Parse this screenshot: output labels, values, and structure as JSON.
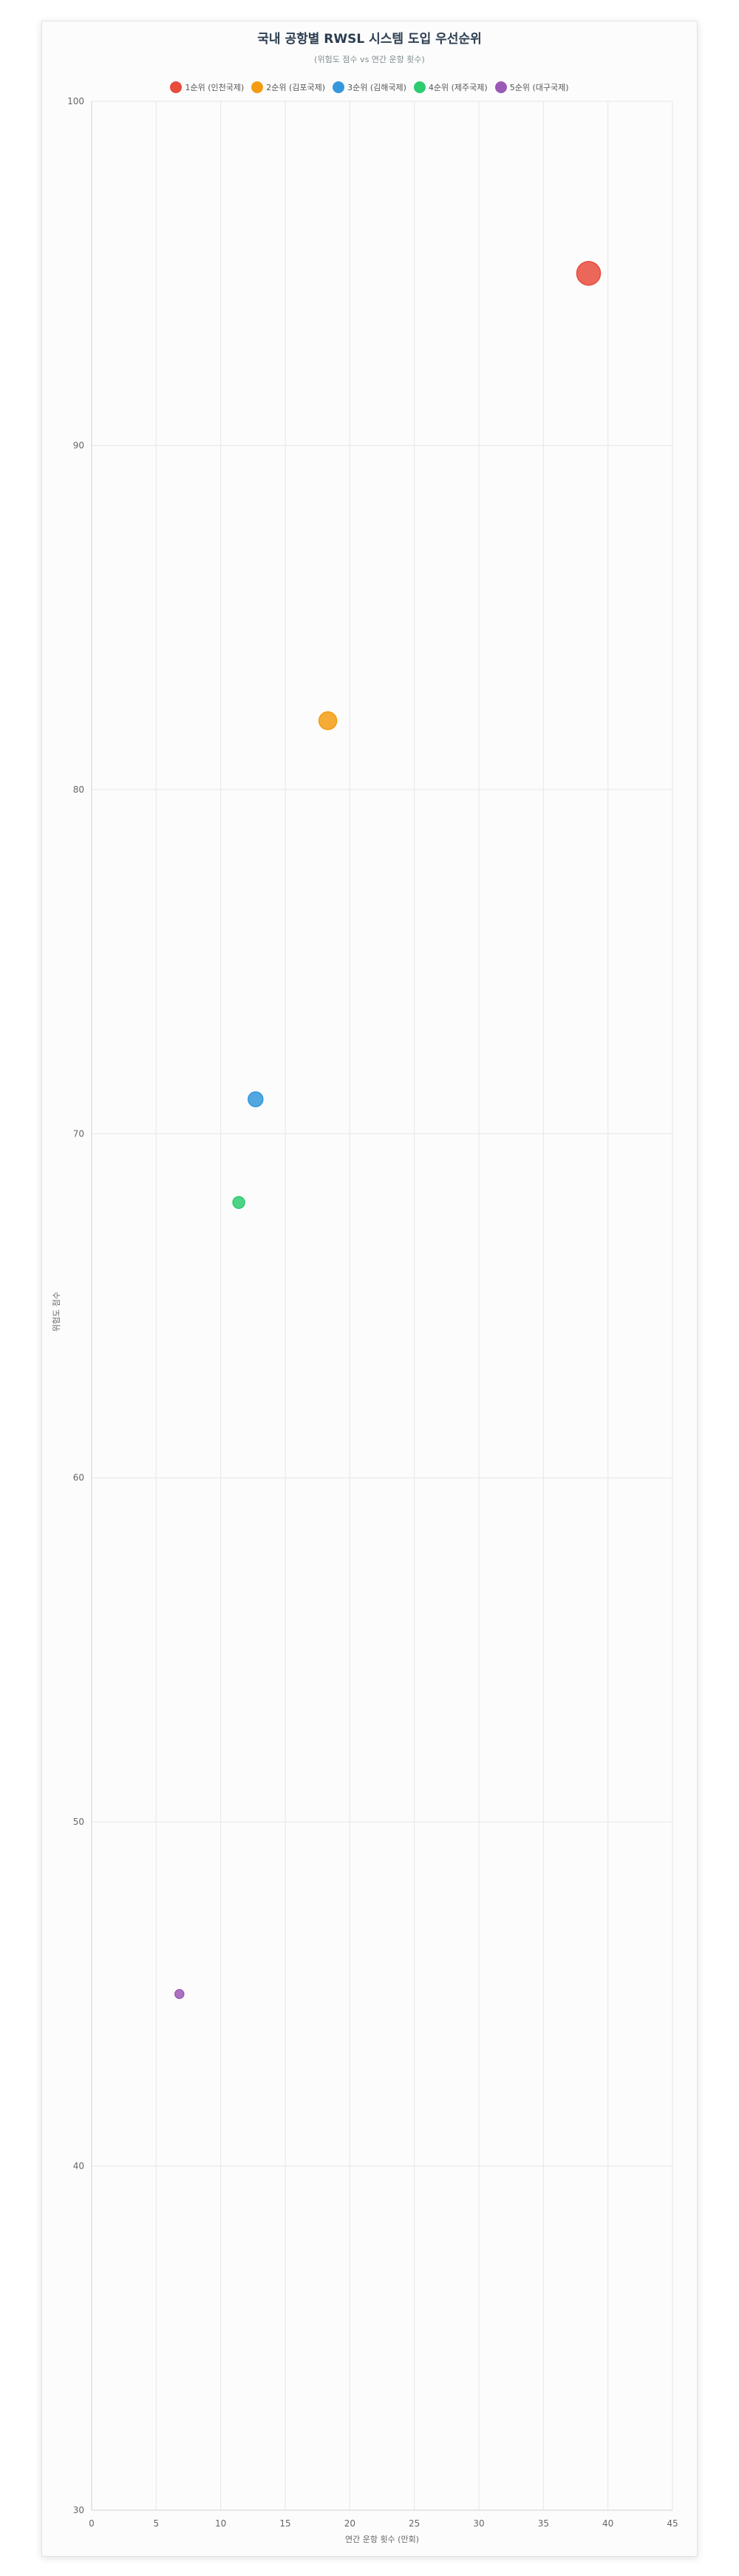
{
  "chart_data": {
    "type": "scatter",
    "title": "국내 공항별 RWSL 시스템 도입 우선순위",
    "subtitle": "(위험도 점수 vs 연간 운항 횟수)",
    "xlabel": "연간 운항 횟수 (만회)",
    "ylabel": "위험도 점수",
    "xlim": [
      0,
      45
    ],
    "ylim": [
      30,
      100
    ],
    "xticks": [
      "0",
      "5",
      "10",
      "15",
      "20",
      "25",
      "30",
      "35",
      "40",
      "45"
    ],
    "yticks": [
      "30",
      "40",
      "50",
      "60",
      "70",
      "80",
      "90",
      "100"
    ],
    "grid": true,
    "legend_position": "top",
    "series": [
      {
        "name": "1순위 (인천국제)",
        "color": "#e74c3c",
        "points": [
          {
            "x": 38.5,
            "y": 95
          }
        ],
        "size": "large"
      },
      {
        "name": "2순위 (김포국제)",
        "color": "#f39c12",
        "points": [
          {
            "x": 18.3,
            "y": 82
          }
        ],
        "size": "medium-large"
      },
      {
        "name": "3순위 (김해국제)",
        "color": "#3498db",
        "points": [
          {
            "x": 12.7,
            "y": 71
          }
        ],
        "size": "medium"
      },
      {
        "name": "4순위 (제주국제)",
        "color": "#2ecc71",
        "points": [
          {
            "x": 11.4,
            "y": 68
          }
        ],
        "size": "small"
      },
      {
        "name": "5순위 (대구국제)",
        "color": "#9b59b6",
        "points": [
          {
            "x": 6.8,
            "y": 45
          }
        ],
        "size": "smallest"
      }
    ]
  }
}
